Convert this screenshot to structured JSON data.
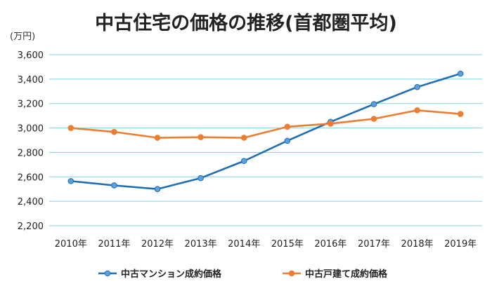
{
  "chart_data": {
    "type": "line",
    "title": "中古住宅の価格の推移(首都圏平均)",
    "unit_label": "(万円)",
    "categories": [
      "2010年",
      "2011年",
      "2012年",
      "2013年",
      "2014年",
      "2015年",
      "2016年",
      "2017年",
      "2018年",
      "2019年"
    ],
    "ylim": [
      2200,
      3600
    ],
    "yticks": [
      2200,
      2400,
      2600,
      2800,
      3000,
      3200,
      3400,
      3600
    ],
    "ytick_labels": [
      "2,200",
      "2,400",
      "2,600",
      "2,800",
      "3,000",
      "3,200",
      "3,400",
      "3,600"
    ],
    "grid": true,
    "legend_position": "bottom",
    "series": [
      {
        "name": "中古マンション成約価格",
        "color": "#1f6db5",
        "marker_color": "#5aa0dc",
        "values": [
          2565,
          2530,
          2500,
          2590,
          2730,
          2895,
          3050,
          3195,
          3335,
          3445
        ]
      },
      {
        "name": "中古戸建て成約価格",
        "color": "#ed7d31",
        "marker_color": "#ed7d31",
        "values": [
          3000,
          2968,
          2920,
          2925,
          2920,
          3010,
          3035,
          3075,
          3145,
          3115
        ]
      }
    ]
  }
}
